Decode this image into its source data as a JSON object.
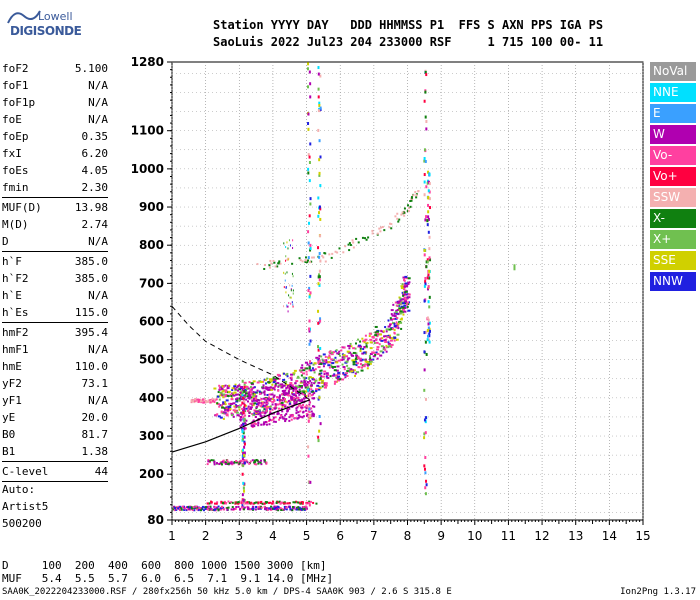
{
  "logo": {
    "line1": "Lowell",
    "line2": "DIGISONDE"
  },
  "header": {
    "line1": "Station YYYY DAY   DDD HHMMSS P1  FFS S AXN PPS IGA PS",
    "line2": "SaoLuis 2022 Jul23 204 233000 RSF     1 715 100 00- 11"
  },
  "params_group1": [
    {
      "name": "foF2",
      "value": "5.100"
    },
    {
      "name": "foF1",
      "value": "N/A"
    },
    {
      "name": "foF1p",
      "value": "N/A"
    },
    {
      "name": "foE",
      "value": "N/A"
    },
    {
      "name": "foEp",
      "value": "0.35"
    },
    {
      "name": "fxI",
      "value": "6.20"
    },
    {
      "name": "foEs",
      "value": "4.05"
    },
    {
      "name": "fmin",
      "value": "2.30"
    }
  ],
  "params_group2": [
    {
      "name": "MUF(D)",
      "value": "13.98"
    },
    {
      "name": "M(D)",
      "value": "2.74"
    },
    {
      "name": "D",
      "value": "N/A"
    }
  ],
  "params_group3": [
    {
      "name": "h`F",
      "value": "385.0"
    },
    {
      "name": "h`F2",
      "value": "385.0"
    },
    {
      "name": "h`E",
      "value": "N/A"
    },
    {
      "name": "h`Es",
      "value": "115.0"
    }
  ],
  "params_group4": [
    {
      "name": "hmF2",
      "value": "395.4"
    },
    {
      "name": "hmF1",
      "value": "N/A"
    },
    {
      "name": "hmE",
      "value": "110.0"
    },
    {
      "name": "yF2",
      "value": "73.1"
    },
    {
      "name": "yF1",
      "value": "N/A"
    },
    {
      "name": "yE",
      "value": "20.0"
    },
    {
      "name": "B0",
      "value": "81.7"
    },
    {
      "name": "B1",
      "value": "1.38"
    }
  ],
  "clevel": {
    "name": "C-level",
    "value": "44"
  },
  "auto": {
    "line1": "Auto:",
    "line2": "Artist5",
    "line3": "500200"
  },
  "legend": [
    {
      "label": "NoVal",
      "color": "#9a9a9a"
    },
    {
      "label": "NNE",
      "color": "#00e0ff"
    },
    {
      "label": "E",
      "color": "#3aa0ff"
    },
    {
      "label": "W",
      "color": "#b000b0"
    },
    {
      "label": "Vo-",
      "color": "#ff40a0"
    },
    {
      "label": "Vo+",
      "color": "#ff0040"
    },
    {
      "label": "SSW",
      "color": "#f4b0b0"
    },
    {
      "label": "X-",
      "color": "#108010"
    },
    {
      "label": "X+",
      "color": "#70c050"
    },
    {
      "label": "SSE",
      "color": "#d0d000"
    },
    {
      "label": "NNW",
      "color": "#2020e0"
    }
  ],
  "footer": {
    "d_row": "D     100  200  400  600  800 1000 1500 3000 [km]",
    "muf_row": "MUF   5.4  5.5  5.7  6.0  6.5  7.1  9.1 14.0 [MHz]",
    "filename": "SAA0K_2022204233000.RSF / 280fx256h 50 kHz 5.0 km / DPS-4 SAA0K 903 / 2.6 S 315.8 E",
    "version": "Ion2Png 1.3.17"
  },
  "chart_data": {
    "type": "scatter",
    "xlabel": "",
    "ylabel": "",
    "xlim": [
      1,
      15
    ],
    "ylim": [
      80,
      1280
    ],
    "x_ticks": [
      1,
      2,
      3,
      4,
      5,
      6,
      7,
      8,
      9,
      10,
      11,
      12,
      13,
      14,
      15
    ],
    "y_ticks": [
      80,
      200,
      300,
      400,
      500,
      600,
      700,
      800,
      900,
      1000,
      1100,
      1280
    ],
    "grid": true,
    "traces": [
      {
        "name": "F2 trace",
        "points": [
          [
            2.3,
            390
          ],
          [
            2.6,
            392
          ],
          [
            3.0,
            398
          ],
          [
            3.5,
            405
          ],
          [
            4.0,
            415
          ],
          [
            4.5,
            430
          ],
          [
            5.0,
            450
          ],
          [
            5.5,
            475
          ],
          [
            6.0,
            490
          ],
          [
            6.5,
            510
          ],
          [
            7.0,
            540
          ],
          [
            7.5,
            580
          ],
          [
            7.8,
            640
          ],
          [
            8.0,
            700
          ]
        ]
      },
      {
        "name": "E/Es traces",
        "points": [
          [
            1.0,
            110
          ],
          [
            2.0,
            110
          ],
          [
            3.0,
            110
          ],
          [
            4.05,
            112
          ],
          [
            5.0,
            112
          ]
        ]
      },
      {
        "name": "2F trace",
        "points": [
          [
            3.5,
            750
          ],
          [
            4.5,
            760
          ],
          [
            5.5,
            770
          ],
          [
            6.5,
            810
          ],
          [
            7.5,
            860
          ],
          [
            8.0,
            900
          ],
          [
            8.3,
            950
          ]
        ]
      }
    ],
    "profile_solid": [
      [
        1.0,
        258
      ],
      [
        2.0,
        285
      ],
      [
        3.0,
        320
      ],
      [
        4.0,
        360
      ],
      [
        5.1,
        395
      ]
    ],
    "profile_dashed": [
      [
        1.0,
        640
      ],
      [
        1.5,
        590
      ],
      [
        2.0,
        548
      ],
      [
        3.0,
        500
      ],
      [
        4.0,
        460
      ],
      [
        5.1,
        395
      ]
    ]
  }
}
